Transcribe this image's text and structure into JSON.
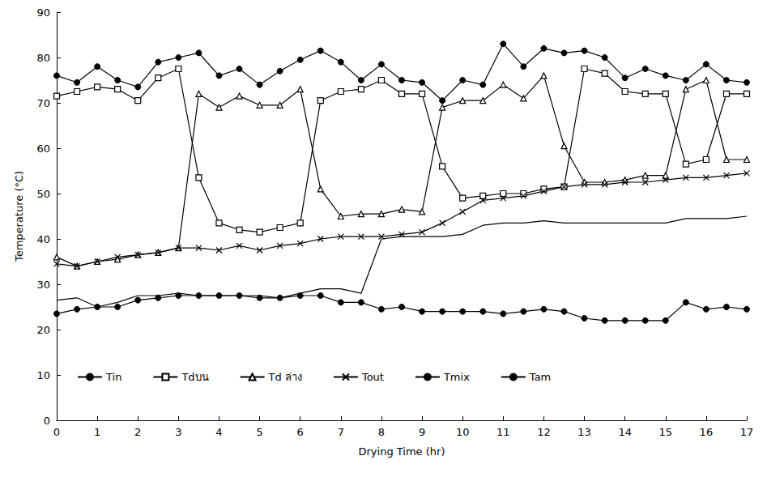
{
  "chart_data": {
    "type": "line",
    "x_label": "Drying Time (hr)",
    "y_label": "Temperature (°C)",
    "x": [
      0,
      0.5,
      1,
      1.5,
      2,
      2.5,
      3,
      3.5,
      4,
      4.5,
      5,
      5.5,
      6,
      6.5,
      7,
      7.5,
      8,
      8.5,
      9,
      9.5,
      10,
      10.5,
      11,
      11.5,
      12,
      12.5,
      13,
      13.5,
      14,
      14.5,
      15,
      15.5,
      16,
      16.5,
      17
    ],
    "xlim": [
      0,
      17
    ],
    "xticks": [
      0,
      1,
      2,
      3,
      4,
      5,
      6,
      7,
      8,
      9,
      10,
      11,
      12,
      13,
      14,
      15,
      16,
      17
    ],
    "ylim": [
      0,
      90
    ],
    "yticks": [
      0,
      10,
      20,
      30,
      40,
      50,
      60,
      70,
      80,
      90
    ],
    "grid": false,
    "legend": "bottom",
    "series": [
      {
        "name": "Tin",
        "color": "#000000",
        "marker": "circle",
        "line_style": "solid",
        "values": [
          76,
          74.5,
          78,
          75,
          73.5,
          79,
          80,
          81,
          76,
          77.5,
          74,
          77,
          79.5,
          81.5,
          79,
          75,
          78.5,
          75,
          74.5,
          70.5,
          75,
          74,
          83,
          78,
          82,
          81,
          81.5,
          80,
          75.5,
          77.5,
          76,
          75,
          78.5,
          75,
          74.5
        ]
      },
      {
        "name": "Tdบน",
        "color": "#000000",
        "marker": "open_square",
        "line_style": "solid",
        "values": [
          71.5,
          72.5,
          73.5,
          73,
          70.5,
          75.5,
          77.5,
          53.5,
          43.5,
          42,
          41.5,
          42.5,
          43.5,
          70.5,
          72.5,
          73,
          75,
          72,
          72,
          56,
          49,
          49.5,
          50,
          50,
          51,
          51.5,
          77.5,
          76.5,
          72.5,
          72,
          72,
          56.5,
          57.5,
          72,
          72
        ]
      },
      {
        "name": "Td ล่าง",
        "color": "#000000",
        "marker": "open_triangle",
        "line_style": "solid",
        "values": [
          36,
          34,
          35,
          35.5,
          36.5,
          37,
          38,
          72,
          69,
          71.5,
          69.5,
          69.5,
          73,
          51,
          45,
          45.5,
          45.5,
          46.5,
          46,
          69,
          70.5,
          70.5,
          74,
          71,
          76,
          60.5,
          52.5,
          52.5,
          53,
          54,
          54,
          73,
          75,
          57.5,
          57.5
        ]
      },
      {
        "name": "Tout",
        "color": "#000000",
        "marker": "x",
        "line_style": "solid",
        "values": [
          34.5,
          34,
          35,
          36,
          36.5,
          37,
          38,
          38,
          37.5,
          38.5,
          37.5,
          38.5,
          39,
          40,
          40.5,
          40.5,
          40.5,
          41,
          41.5,
          43.5,
          46,
          48.5,
          49,
          49.5,
          50.5,
          51.5,
          52,
          52,
          52.5,
          52.5,
          53,
          53.5,
          53.5,
          54,
          54.5
        ]
      },
      {
        "name": "Tmix",
        "color": "#000000",
        "marker": "none",
        "line_style": "solid",
        "values": [
          26.5,
          27,
          25,
          26,
          27.5,
          27.5,
          28,
          27.5,
          27.5,
          27.5,
          27.5,
          27,
          28,
          29,
          29,
          28,
          40,
          40.5,
          40.5,
          40.5,
          41,
          43,
          43.5,
          43.5,
          44,
          43.5,
          43.5,
          43.5,
          43.5,
          43.5,
          43.5,
          44.5,
          44.5,
          44.5,
          45
        ]
      },
      {
        "name": "Tam",
        "color": "#000000",
        "marker": "circle",
        "line_style": "solid",
        "values": [
          23.5,
          24.5,
          25,
          25,
          26.5,
          27,
          27.5,
          27.5,
          27.5,
          27.5,
          27,
          27,
          27.5,
          27.5,
          26,
          26,
          24.5,
          25,
          24,
          24,
          24,
          24,
          23.5,
          24,
          24.5,
          24,
          22.5,
          22,
          22,
          22,
          22,
          26,
          24.5,
          25,
          24.5
        ]
      }
    ]
  }
}
